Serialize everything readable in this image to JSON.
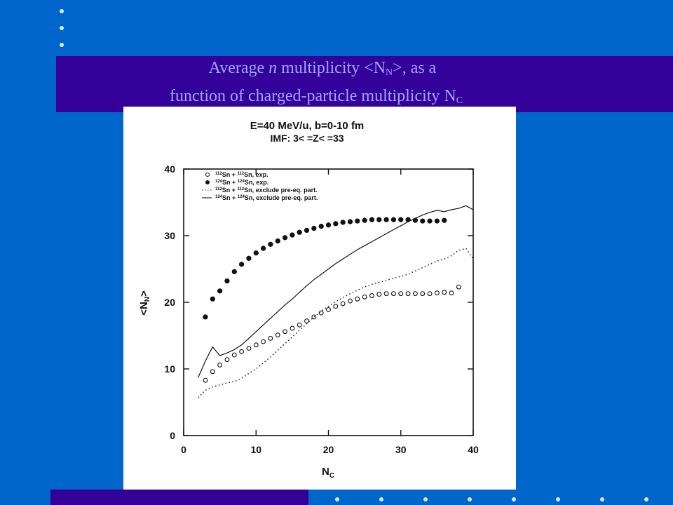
{
  "slide": {
    "title_line1_pre": "Average ",
    "title_line1_italic": "n",
    "title_line1_mid": " multiplicity <N",
    "title_line1_sub": "N",
    "title_line1_post": ">,  as a",
    "title_line2_main": "function of charged-particle multiplicity N",
    "title_line2_sub": "C",
    "colors": {
      "background": "#0066cc",
      "band": "#330099",
      "title_text": "#9fa8ff"
    }
  },
  "chart_data": {
    "type": "scatter",
    "title": "E=40 MeV/u, b=0-10 fm",
    "subtitle": "IMF: 3< =Z< =33",
    "xlabel_main": "N",
    "xlabel_sub": "C",
    "ylabel_main": "<N",
    "ylabel_sub": "N",
    "ylabel_post": ">",
    "xlim": [
      0,
      40
    ],
    "ylim": [
      0,
      40
    ],
    "x_ticks": [
      "0",
      "10",
      "20",
      "30",
      "40"
    ],
    "y_ticks": [
      "0",
      "10",
      "20",
      "30",
      "40"
    ],
    "legend_position": "top-left",
    "series": [
      {
        "name": "112Sn+112Sn exp.",
        "name_sup1": "112",
        "name_a": "Sn + ",
        "name_sup2": "112",
        "name_b": "Sn, exp.",
        "marker": "open-circle",
        "x": [
          3,
          4,
          5,
          6,
          7,
          8,
          9,
          10,
          11,
          12,
          13,
          14,
          15,
          16,
          17,
          18,
          19,
          20,
          21,
          22,
          23,
          24,
          25,
          26,
          27,
          28,
          29,
          30,
          31,
          32,
          33,
          34,
          35,
          36,
          37,
          38
        ],
        "y": [
          8.3,
          9.6,
          10.6,
          11.4,
          12.1,
          12.6,
          13.1,
          13.6,
          14.1,
          14.6,
          15.1,
          15.6,
          16.1,
          16.6,
          17.2,
          17.8,
          18.4,
          18.9,
          19.4,
          19.8,
          20.2,
          20.5,
          20.8,
          21,
          21.2,
          21.3,
          21.3,
          21.3,
          21.3,
          21.3,
          21.3,
          21.3,
          21.4,
          21.5,
          21.4,
          22.3
        ]
      },
      {
        "name": "124Sn+124Sn exp.",
        "name_sup1": "124",
        "name_a": "Sn + ",
        "name_sup2": "124",
        "name_b": "Sn, exp.",
        "marker": "filled-circle",
        "x": [
          3,
          4,
          5,
          6,
          7,
          8,
          9,
          10,
          11,
          12,
          13,
          14,
          15,
          16,
          17,
          18,
          19,
          20,
          21,
          22,
          23,
          24,
          25,
          26,
          27,
          28,
          29,
          30,
          31,
          32,
          33,
          34,
          35,
          36
        ],
        "y": [
          17.8,
          20.5,
          21.7,
          23.2,
          24.6,
          25.7,
          26.6,
          27.4,
          28.1,
          28.7,
          29.2,
          29.7,
          30.1,
          30.5,
          30.8,
          31.1,
          31.4,
          31.6,
          31.8,
          32,
          32.1,
          32.2,
          32.3,
          32.4,
          32.4,
          32.4,
          32.4,
          32.4,
          32.4,
          32.3,
          32.2,
          32.2,
          32.2,
          32.3
        ]
      },
      {
        "name": "112Sn+112Sn exclude pre-eq. part.",
        "name_sup1": "112",
        "name_a": "Sn + ",
        "name_sup2": "112",
        "name_b": "Sn, exclude pre-eq. part.",
        "marker": "dotted-line",
        "x": [
          2,
          3,
          4,
          5,
          6,
          7,
          8,
          9,
          10,
          11,
          12,
          13,
          14,
          15,
          16,
          17,
          18,
          19,
          20,
          21,
          22,
          23,
          24,
          25,
          26,
          27,
          28,
          29,
          30,
          31,
          32,
          33,
          34,
          35,
          36,
          37,
          38,
          39,
          40
        ],
        "y": [
          5.7,
          6.8,
          7.3,
          7.6,
          7.9,
          8.1,
          8.6,
          9.3,
          10,
          10.9,
          11.8,
          12.8,
          13.8,
          14.8,
          15.8,
          16.8,
          17.8,
          18.7,
          19.4,
          20.1,
          20.7,
          21.3,
          21.8,
          22.3,
          22.7,
          23,
          23.3,
          23.6,
          23.9,
          24.2,
          24.7,
          25.2,
          25.7,
          26.2,
          26.5,
          27,
          27.8,
          28.1,
          26.5
        ]
      },
      {
        "name": "124Sn+124Sn exclude pre-eq. part.",
        "name_sup1": "124",
        "name_a": "Sn + ",
        "name_sup2": "124",
        "name_b": "Sn, exclude pre-eq. part.",
        "marker": "solid-line",
        "x": [
          2,
          3,
          4,
          5,
          6,
          7,
          8,
          9,
          10,
          11,
          12,
          13,
          14,
          15,
          16,
          17,
          18,
          19,
          20,
          21,
          22,
          23,
          24,
          25,
          26,
          27,
          28,
          29,
          30,
          31,
          32,
          33,
          34,
          35,
          36,
          37,
          38,
          39,
          40
        ],
        "y": [
          8.7,
          11.2,
          13.3,
          12,
          12.4,
          12.9,
          13.6,
          14.6,
          15.6,
          16.6,
          17.6,
          18.6,
          19.6,
          20.5,
          21.5,
          22.5,
          23.4,
          24.2,
          25,
          25.8,
          26.5,
          27.2,
          27.9,
          28.5,
          29.1,
          29.7,
          30.3,
          30.9,
          31.5,
          32.1,
          32.6,
          33.1,
          33.5,
          33.8,
          33.6,
          33.9,
          34.1,
          34.5,
          33.9
        ]
      }
    ]
  }
}
